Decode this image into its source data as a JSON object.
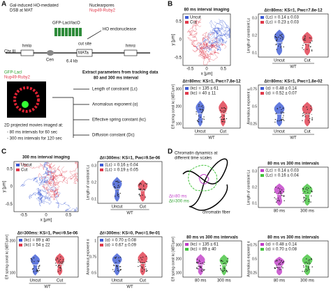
{
  "panel_labels": [
    "A",
    "B",
    "C",
    "D"
  ],
  "panel_a": {
    "title": "Gal-induced HO-mediated",
    "subtitle": "DSB at MAT",
    "pores": "Nuclearpores",
    "nup": "Nup49-Ruby2",
    "lac": "GFP-LacI/lacO",
    "ho": "HO endonuclease",
    "cut": "cut site",
    "mat": "MATa",
    "chr": "Chr III",
    "hml": "hmlα",
    "hmr": "hmrα",
    "cen": "Cen",
    "kb": "6.4 kb",
    "img_green": "GFP-LacI",
    "img_red": "Nup49-Ruby2",
    "extract": "Extract parameters from tracking data",
    "extract2": "80 and 300 ms interval",
    "movies": "2D projected movies imaged at:",
    "m1": "- 80 ms intervals for 60 sec",
    "m2": "- 300 ms intervals for 120 sec",
    "params": [
      "Length of constraint (Lc)",
      "Anomalous exponent (α)",
      "Effective spring constant (kc)",
      "Diffusion constant (Dc)"
    ]
  },
  "panel_b": {
    "trace": {
      "title": "80 ms  interval imaging",
      "legend": [
        "Uncut",
        "Cut"
      ],
      "xlabel": "x [μm]",
      "ylabel": "y [μm]",
      "xticks": [
        "-0.5",
        "0",
        "0.5"
      ],
      "yticks": [
        "-0.5",
        "0",
        "0.5"
      ]
    },
    "plots": [
      {
        "title": "Δt=80ms: KS=1, Pwc=7.8e-12",
        "stats": [
          "⟨Lc⟩ = 0.14 ± 0.03",
          "⟨Lc⟩ = 0.23 ± 0.03"
        ],
        "ylabel": "Length of constraint Lc",
        "categories": [
          "Uncut",
          "Cut"
        ],
        "group": "WT",
        "yticks": [
          "0.1",
          "0.2",
          "0.3"
        ]
      },
      {
        "title": "Δt=80ms: KS=1, Pwc=7.8e-12",
        "stats": [
          "⟨kc⟩ = 135 ± 61",
          "⟨kc⟩ = 40 ± 11"
        ],
        "ylabel": "Eff spring const kc [kBT/μm²]",
        "categories": [
          "Uncut",
          "Cut"
        ],
        "group": "WT",
        "yticks": [
          "100",
          "200",
          "300"
        ]
      },
      {
        "title": "Δt=80ms: KS=1, Pwc=1.8e-02",
        "stats": [
          "⟨α⟩ = 0.48 ± 0.14",
          "⟨α⟩ = 0.52 ± 0.07"
        ],
        "ylabel": "Anomalous exponent α",
        "categories": [
          "Uncut",
          "Cut"
        ],
        "group": "WT",
        "yticks": [
          "0.25",
          "0.5",
          "0.75"
        ]
      }
    ]
  },
  "panel_c": {
    "trace": {
      "title": "300 ms  interval imaging",
      "legend": [
        "Uncut",
        "Cut"
      ],
      "xlabel": "x [μm]",
      "ylabel": "y [μm]",
      "xticks": [
        "-0.5",
        "0",
        "0.5"
      ],
      "yticks": [
        "-0.5",
        "0",
        "0.5"
      ]
    },
    "plots": [
      {
        "title": "Δt=300ms: KS=1, Pwc=9.5e-06",
        "stats": [
          "⟨Lc⟩ = 0.16 ± 0.04",
          "⟨Lc⟩ = 0.19 ± 0.05"
        ],
        "ylabel": "Length of constraint Lc",
        "categories": [
          "Uncut",
          "Cut"
        ],
        "group": "WT",
        "yticks": [
          "0.1",
          "0.2",
          "0.3"
        ]
      },
      {
        "title": "Δt=300ms: KS=1, Pwc=9.5e-06",
        "stats": [
          "⟨kc⟩ = 89 ± 40",
          "⟨kc⟩ = 54 ± 22"
        ],
        "ylabel": "Eff spring const kc [kBT/μm²]",
        "categories": [
          "Uncut",
          "Cut"
        ],
        "group": "WT",
        "yticks": [
          "100",
          "200"
        ]
      },
      {
        "title": "Δt=300ms: KS=0, Pwc=1.9e-01",
        "stats": [
          "⟨α⟩ = 0.70 ± 0.08",
          "⟨α⟩ = 0.67 ± 0.09"
        ],
        "ylabel": "Anomalous exponent α",
        "categories": [
          "Uncut",
          "Cut"
        ],
        "group": "WT",
        "yticks": [
          "0.5",
          "0.75",
          "1"
        ]
      }
    ]
  },
  "panel_d": {
    "diagram": {
      "title": "Chromatin dynamics at",
      "title2": "different time scales",
      "dt80": "Δt=80 ms",
      "dt300": "Δt=300 ms",
      "fiber": "chromatin fiber"
    },
    "plots": [
      {
        "title": "80 ms vs 300 ms intervals",
        "stats": [
          "⟨Lc⟩ = 0.14 ± 0.03",
          "⟨Lc⟩ = 0.16 ± 0.04"
        ],
        "ylabel": "Length of constraint Lc",
        "categories": [
          "80 ms",
          "300 ms"
        ],
        "yticks": [
          "0.1",
          "0.2",
          "0.3"
        ]
      },
      {
        "title": "80 ms vs 300 ms intervals",
        "stats": [
          "⟨kc⟩ = 135 ± 61",
          "⟨kc⟩ = 89 ± 40"
        ],
        "ylabel": "Eff spring const kc [kBT/μm²]",
        "categories": [
          "80 ms",
          "300 ms"
        ],
        "yticks": [
          "100",
          "200",
          "300"
        ]
      },
      {
        "title": "80 ms vs 300 ms intervals",
        "stats": [
          "⟨α⟩ = 0.48 ± 0.14",
          "⟨α⟩ = 0.70 ± 0.08"
        ],
        "ylabel": "Anomalous exponent α",
        "categories": [
          "80 ms",
          "300 ms"
        ],
        "yticks": [
          "0.25",
          "0.5",
          "0.75"
        ]
      }
    ]
  }
}
